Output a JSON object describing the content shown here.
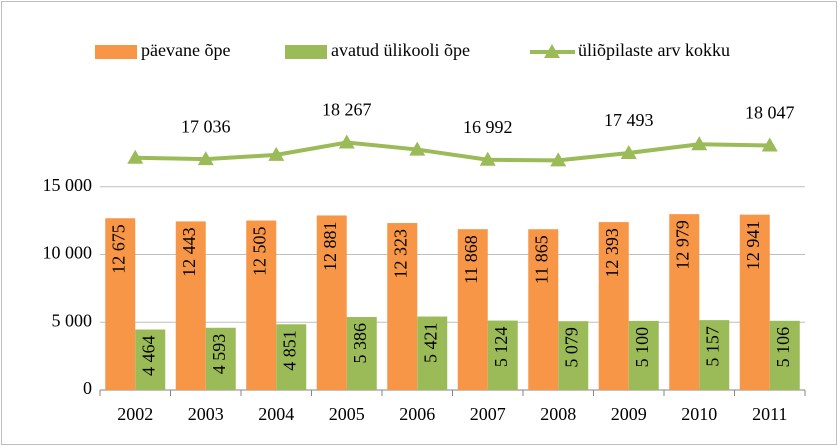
{
  "chart_data": {
    "type": "bar",
    "categories": [
      "2002",
      "2003",
      "2004",
      "2005",
      "2006",
      "2007",
      "2008",
      "2009",
      "2010",
      "2011"
    ],
    "series": [
      {
        "name": "päevane õpe",
        "color": "#f79646",
        "values": [
          12675,
          12443,
          12505,
          12881,
          12323,
          11868,
          11865,
          12393,
          12979,
          12941
        ],
        "value_labels": [
          "12 675",
          "12 443",
          "12 505",
          "12 881",
          "12 323",
          "11 868",
          "11 865",
          "12 393",
          "12 979",
          "12 941"
        ]
      },
      {
        "name": "avatud ülikooli õpe",
        "color": "#9bbb59",
        "values": [
          4464,
          4593,
          4851,
          5386,
          5421,
          5124,
          5079,
          5100,
          5157,
          5106
        ],
        "value_labels": [
          "4 464",
          "4 593",
          "4 851",
          "5 386",
          "5 421",
          "5 124",
          "5 079",
          "5 100",
          "5 157",
          "5 106"
        ]
      },
      {
        "name": "üliõpilaste arv kokku",
        "type": "line",
        "color": "#9bbb59",
        "values": [
          17139,
          17036,
          17356,
          18267,
          17744,
          16992,
          16944,
          17493,
          18136,
          18047
        ],
        "value_labels": [
          null,
          "17 036",
          null,
          "18 267",
          null,
          "16 992",
          null,
          "17 493",
          null,
          "18 047"
        ]
      }
    ],
    "ylim": [
      0,
      20000
    ],
    "yticks": [
      0,
      {
        "value": 5000,
        "label": "5 000"
      },
      {
        "value": 10000,
        "label": "10 000"
      },
      {
        "value": 15000,
        "label": "15 000"
      }
    ],
    "grid": true,
    "legend": "top"
  }
}
